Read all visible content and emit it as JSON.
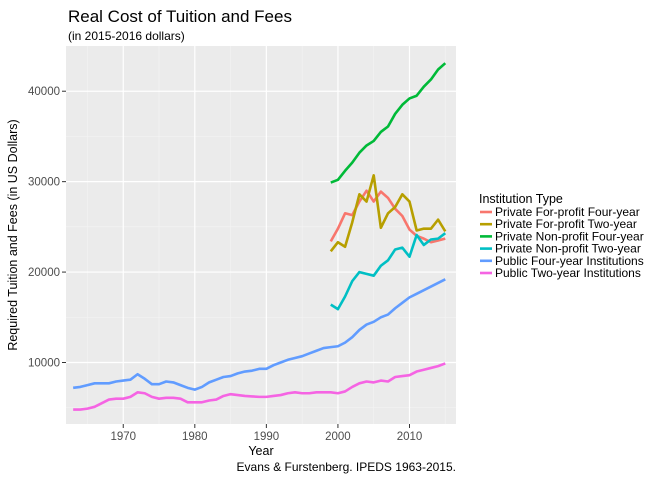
{
  "chart_data": {
    "type": "line",
    "title": "Real Cost of Tuition and Fees",
    "subtitle": "(in 2015-2016 dollars)",
    "xlabel": "Year",
    "ylabel": "Required Tuition and Fees (in US Dollars)",
    "caption": "Evans & Furstenberg. IPEDS 1963-2015.",
    "xlim": [
      1962,
      2016.5
    ],
    "ylim": [
      3200,
      45000
    ],
    "x_ticks": [
      1970,
      1980,
      1990,
      2000,
      2010
    ],
    "x_tick_labels": [
      "1970",
      "1980",
      "1990",
      "2000",
      "2010"
    ],
    "y_ticks": [
      10000,
      20000,
      30000,
      40000
    ],
    "y_tick_labels": [
      "10000",
      "20000",
      "30000",
      "40000"
    ],
    "grid": true,
    "panel_color": "#ebebeb",
    "legend": {
      "title": "Institution Type",
      "position": "right"
    },
    "series": [
      {
        "name": "Private For-profit Four-year",
        "color": "#f8766d",
        "x": [
          1999,
          2000,
          2001,
          2002,
          2003,
          2004,
          2005,
          2006,
          2007,
          2008,
          2009,
          2010,
          2011,
          2012,
          2013,
          2014,
          2015
        ],
        "y": [
          23400,
          24800,
          26500,
          26300,
          27800,
          29000,
          27800,
          28900,
          28200,
          27000,
          26200,
          24700,
          24000,
          23700,
          23300,
          23500,
          23700
        ]
      },
      {
        "name": "Private For-profit Two-year",
        "color": "#b79f00",
        "x": [
          1999,
          2000,
          2001,
          2002,
          2003,
          2004,
          2005,
          2006,
          2007,
          2008,
          2009,
          2010,
          2011,
          2012,
          2013,
          2014,
          2015
        ],
        "y": [
          22300,
          23300,
          22800,
          25500,
          28600,
          27800,
          30700,
          24900,
          26500,
          27200,
          28600,
          27800,
          24600,
          24800,
          24800,
          25800,
          24500
        ]
      },
      {
        "name": "Private Non-profit Four-year",
        "color": "#00ba38",
        "x": [
          1999,
          2000,
          2001,
          2002,
          2003,
          2004,
          2005,
          2006,
          2007,
          2008,
          2009,
          2010,
          2011,
          2012,
          2013,
          2014,
          2015
        ],
        "y": [
          29900,
          30200,
          31200,
          32100,
          33200,
          34000,
          34500,
          35500,
          36100,
          37500,
          38500,
          39200,
          39500,
          40500,
          41300,
          42400,
          43100
        ]
      },
      {
        "name": "Private Non-profit Two-year",
        "color": "#00bfc4",
        "x": [
          1999,
          2000,
          2001,
          2002,
          2003,
          2004,
          2005,
          2006,
          2007,
          2008,
          2009,
          2010,
          2011,
          2012,
          2013,
          2014,
          2015
        ],
        "y": [
          16400,
          15900,
          17300,
          19000,
          20000,
          19800,
          19600,
          20700,
          21300,
          22500,
          22700,
          21700,
          24100,
          23000,
          23600,
          23700,
          24300
        ]
      },
      {
        "name": "Public Four-year Institutions",
        "color": "#619cff",
        "x": [
          1963,
          1964,
          1965,
          1966,
          1967,
          1968,
          1969,
          1970,
          1971,
          1972,
          1973,
          1974,
          1975,
          1976,
          1977,
          1978,
          1979,
          1980,
          1981,
          1982,
          1983,
          1984,
          1985,
          1986,
          1987,
          1988,
          1989,
          1990,
          1991,
          1992,
          1993,
          1994,
          1995,
          1996,
          1997,
          1998,
          1999,
          2000,
          2001,
          2002,
          2003,
          2004,
          2005,
          2006,
          2007,
          2008,
          2009,
          2010,
          2011,
          2012,
          2013,
          2014,
          2015
        ],
        "y": [
          7200,
          7300,
          7500,
          7700,
          7700,
          7700,
          7900,
          8000,
          8100,
          8700,
          8200,
          7600,
          7600,
          7900,
          7800,
          7500,
          7200,
          7000,
          7300,
          7800,
          8100,
          8400,
          8500,
          8800,
          9000,
          9100,
          9300,
          9300,
          9700,
          10000,
          10300,
          10500,
          10700,
          11000,
          11300,
          11600,
          11700,
          11800,
          12200,
          12800,
          13600,
          14200,
          14500,
          15000,
          15300,
          16000,
          16600,
          17200,
          17600,
          18000,
          18400,
          18800,
          19200
        ]
      },
      {
        "name": "Public Two-year Institutions",
        "color": "#f564e3",
        "x": [
          1963,
          1964,
          1965,
          1966,
          1967,
          1968,
          1969,
          1970,
          1971,
          1972,
          1973,
          1974,
          1975,
          1976,
          1977,
          1978,
          1979,
          1980,
          1981,
          1982,
          1983,
          1984,
          1985,
          1986,
          1987,
          1988,
          1989,
          1990,
          1991,
          1992,
          1993,
          1994,
          1995,
          1996,
          1997,
          1998,
          1999,
          2000,
          2001,
          2002,
          2003,
          2004,
          2005,
          2006,
          2007,
          2008,
          2009,
          2010,
          2011,
          2012,
          2013,
          2014,
          2015
        ],
        "y": [
          4800,
          4800,
          4900,
          5100,
          5500,
          5900,
          6000,
          6000,
          6200,
          6700,
          6600,
          6200,
          6000,
          6100,
          6100,
          6000,
          5600,
          5600,
          5600,
          5800,
          5900,
          6300,
          6500,
          6400,
          6300,
          6250,
          6200,
          6200,
          6300,
          6400,
          6600,
          6700,
          6600,
          6600,
          6700,
          6700,
          6700,
          6600,
          6800,
          7300,
          7700,
          7900,
          7800,
          8000,
          7900,
          8400,
          8500,
          8600,
          9000,
          9200,
          9400,
          9600,
          9900
        ]
      }
    ]
  }
}
